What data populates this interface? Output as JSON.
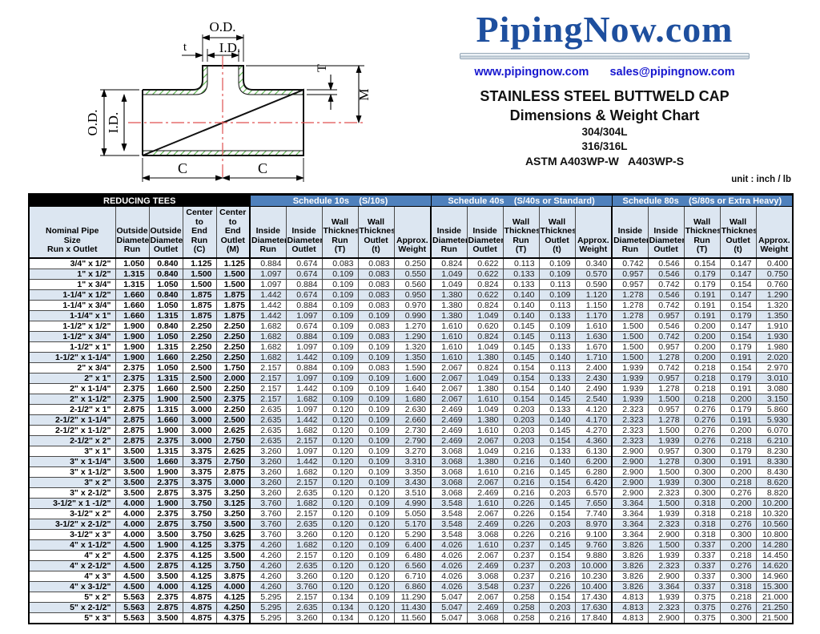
{
  "header": {
    "logo": "PipingNow.com",
    "website": "www.pipingnow.com",
    "email": "sales@pipingnow.com",
    "title1": "STAINLESS STEEL BUTTWELD CAP",
    "title2": "Dimensions & Weight Chart",
    "grade1": "304/304L",
    "grade2": "316/316L",
    "astm": "ASTM A403WP-W   A403WP-S",
    "unit_note": "unit : inch / lb"
  },
  "colors": {
    "logo_blue": "#1e4f9e",
    "link_blue": "#1717cf",
    "schedule_band_blue": "#4f81bd",
    "band_black": "#000000",
    "row_alt_blue": "#dce6f1",
    "hatch_green": "#5cb450",
    "centerline_red": "#e05252"
  },
  "diagram": {
    "labels": {
      "od_top": "O.D.",
      "id_top": "I.D.",
      "t_small": "t",
      "T_right": "T",
      "M_right": "M",
      "od_left": "O.D.",
      "id_left": "I.D.",
      "c_left": "C",
      "c_right": "C"
    }
  },
  "table": {
    "group_headers": [
      {
        "label": "REDUCING TEES",
        "span": 5,
        "style": "black"
      },
      {
        "label": "Schedule 10s    (S/10s)",
        "span": 5,
        "style": "blue"
      },
      {
        "label": "Schedule 40s    (S/40s or Standard)",
        "span": 5,
        "style": "blue"
      },
      {
        "label": "Schedule 80s    (S/80s or Extra Heavy)",
        "span": 5,
        "style": "blue"
      }
    ],
    "column_headers": [
      "Nominal Pipe\nSize\nRun x Outlet",
      "Outside\nDiameter\nRun",
      "Outside\nDiameter\nOutlet",
      "Center to\nEnd Run\n(C)",
      "Center to\nEnd\nOutlet\n(M)",
      "Inside\nDiameter\nRun",
      "Inside\nDiameter\nOutlet",
      "Wall\nThickness\nRun\n(T)",
      "Wall\nThickness\nOutlet\n(t)",
      "Approx.\nWeight",
      "Inside\nDiameter\nRun",
      "Inside\nDiameter\nOutlet",
      "Wall\nThickness\nRun\n(T)",
      "Wall\nThickness\nOutlet\n(t)",
      "Approx.\nWeight",
      "Inside\nDiameter\nRun",
      "Inside\nDiameter\nOutlet",
      "Wall\nThickness\nRun\n(T)",
      "Wall\nThickness\nOutlet\n(t)",
      "Approx.\nWeight"
    ],
    "rows": [
      [
        "3/4\" x 1/2\"",
        "1.050",
        "0.840",
        "1.125",
        "1.125",
        "0.884",
        "0.674",
        "0.083",
        "0.083",
        "0.250",
        "0.824",
        "0.622",
        "0.113",
        "0.109",
        "0.340",
        "0.742",
        "0.546",
        "0.154",
        "0.147",
        "0.400"
      ],
      [
        "1\" x 1/2\"",
        "1.315",
        "0.840",
        "1.500",
        "1.500",
        "1.097",
        "0.674",
        "0.109",
        "0.083",
        "0.550",
        "1.049",
        "0.622",
        "0.133",
        "0.109",
        "0.570",
        "0.957",
        "0.546",
        "0.179",
        "0.147",
        "0.750"
      ],
      [
        "1\" x 3/4\"",
        "1.315",
        "1.050",
        "1.500",
        "1.500",
        "1.097",
        "0.884",
        "0.109",
        "0.083",
        "0.560",
        "1.049",
        "0.824",
        "0.133",
        "0.113",
        "0.590",
        "0.957",
        "0.742",
        "0.179",
        "0.154",
        "0.760"
      ],
      [
        "1-1/4\" x 1/2\"",
        "1.660",
        "0.840",
        "1.875",
        "1.875",
        "1.442",
        "0.674",
        "0.109",
        "0.083",
        "0.950",
        "1.380",
        "0.622",
        "0.140",
        "0.109",
        "1.120",
        "1.278",
        "0.546",
        "0.191",
        "0.147",
        "1.290"
      ],
      [
        "1-1/4\" x 3/4\"",
        "1.660",
        "1.050",
        "1.875",
        "1.875",
        "1.442",
        "0.884",
        "0.109",
        "0.083",
        "0.970",
        "1.380",
        "0.824",
        "0.140",
        "0.113",
        "1.150",
        "1.278",
        "0.742",
        "0.191",
        "0.154",
        "1.320"
      ],
      [
        "1-1/4\" x 1\"",
        "1.660",
        "1.315",
        "1.875",
        "1.875",
        "1.442",
        "1.097",
        "0.109",
        "0.109",
        "0.990",
        "1.380",
        "1.049",
        "0.140",
        "0.133",
        "1.170",
        "1.278",
        "0.957",
        "0.191",
        "0.179",
        "1.350"
      ],
      [
        "1-1/2\" x 1/2\"",
        "1.900",
        "0.840",
        "2.250",
        "2.250",
        "1.682",
        "0.674",
        "0.109",
        "0.083",
        "1.270",
        "1.610",
        "0.620",
        "0.145",
        "0.109",
        "1.610",
        "1.500",
        "0.546",
        "0.200",
        "0.147",
        "1.910"
      ],
      [
        "1-1/2\" x 3/4\"",
        "1.900",
        "1.050",
        "2.250",
        "2.250",
        "1.682",
        "0.884",
        "0.109",
        "0.083",
        "1.290",
        "1.610",
        "0.824",
        "0.145",
        "0.113",
        "1.630",
        "1.500",
        "0.742",
        "0.200",
        "0.154",
        "1.930"
      ],
      [
        "1-1/2\" x 1\"",
        "1.900",
        "1.315",
        "2.250",
        "2.250",
        "1.682",
        "1.097",
        "0.109",
        "0.109",
        "1.320",
        "1.610",
        "1.049",
        "0.145",
        "0.133",
        "1.670",
        "1.500",
        "0.957",
        "0.200",
        "0.179",
        "1.980"
      ],
      [
        "1-1/2\" x 1-1/4\"",
        "1.900",
        "1.660",
        "2.250",
        "2.250",
        "1.682",
        "1.442",
        "0.109",
        "0.109",
        "1.350",
        "1.610",
        "1.380",
        "0.145",
        "0.140",
        "1.710",
        "1.500",
        "1.278",
        "0.200",
        "0.191",
        "2.020"
      ],
      [
        "2\" x 3/4\"",
        "2.375",
        "1.050",
        "2.500",
        "1.750",
        "2.157",
        "0.884",
        "0.109",
        "0.083",
        "1.590",
        "2.067",
        "0.824",
        "0.154",
        "0.113",
        "2.400",
        "1.939",
        "0.742",
        "0.218",
        "0.154",
        "2.970"
      ],
      [
        "2\" x 1\"",
        "2.375",
        "1.315",
        "2.500",
        "2.000",
        "2.157",
        "1.097",
        "0.109",
        "0.109",
        "1.600",
        "2.067",
        "1.049",
        "0.154",
        "0.133",
        "2.430",
        "1.939",
        "0.957",
        "0.218",
        "0.179",
        "3.010"
      ],
      [
        "2\" x 1-1/4\"",
        "2.375",
        "1.660",
        "2.500",
        "2.250",
        "2.157",
        "1.442",
        "0.109",
        "0.109",
        "1.640",
        "2.067",
        "1.380",
        "0.154",
        "0.140",
        "2.490",
        "1.939",
        "1.278",
        "0.218",
        "0.191",
        "3.080"
      ],
      [
        "2\" x 1-1/2\"",
        "2.375",
        "1.900",
        "2.500",
        "2.375",
        "2.157",
        "1.682",
        "0.109",
        "0.109",
        "1.680",
        "2.067",
        "1.610",
        "0.154",
        "0.145",
        "2.540",
        "1.939",
        "1.500",
        "0.218",
        "0.200",
        "3.150"
      ],
      [
        "2-1/2\" x 1\"",
        "2.875",
        "1.315",
        "3.000",
        "2.250",
        "2.635",
        "1.097",
        "0.120",
        "0.109",
        "2.630",
        "2.469",
        "1.049",
        "0.203",
        "0.133",
        "4.120",
        "2.323",
        "0.957",
        "0.276",
        "0.179",
        "5.860"
      ],
      [
        "2-1/2\" x 1-1/4\"",
        "2.875",
        "1.660",
        "3.000",
        "2.500",
        "2.635",
        "1.442",
        "0.120",
        "0.109",
        "2.660",
        "2.469",
        "1.380",
        "0.203",
        "0.140",
        "4.170",
        "2.323",
        "1.278",
        "0.276",
        "0.191",
        "5.930"
      ],
      [
        "2-1/2\" x 1-1/2\"",
        "2.875",
        "1.900",
        "3.000",
        "2.625",
        "2.635",
        "1.682",
        "0.120",
        "0.109",
        "2.730",
        "2.469",
        "1.610",
        "0.203",
        "0.145",
        "4.270",
        "2.323",
        "1.500",
        "0.276",
        "0.200",
        "6.070"
      ],
      [
        "2-1/2\" x 2\"",
        "2.875",
        "2.375",
        "3.000",
        "2.750",
        "2.635",
        "2.157",
        "0.120",
        "0.109",
        "2.790",
        "2.469",
        "2.067",
        "0.203",
        "0.154",
        "4.360",
        "2.323",
        "1.939",
        "0.276",
        "0.218",
        "6.210"
      ],
      [
        "3\" x 1\"",
        "3.500",
        "1.315",
        "3.375",
        "2.625",
        "3.260",
        "1.097",
        "0.120",
        "0.109",
        "3.270",
        "3.068",
        "1.049",
        "0.216",
        "0.133",
        "6.130",
        "2.900",
        "0.957",
        "0.300",
        "0.179",
        "8.230"
      ],
      [
        "3\" x 1-1/4\"",
        "3.500",
        "1.660",
        "3.375",
        "2.750",
        "3.260",
        "1.442",
        "0.120",
        "0.109",
        "3.310",
        "3.068",
        "1.380",
        "0.216",
        "0.140",
        "6.200",
        "2.900",
        "1.278",
        "0.300",
        "0.191",
        "8.330"
      ],
      [
        "3\" x 1-1/2\"",
        "3.500",
        "1.900",
        "3.375",
        "2.875",
        "3.260",
        "1.682",
        "0.120",
        "0.109",
        "3.350",
        "3.068",
        "1.610",
        "0.216",
        "0.145",
        "6.280",
        "2.900",
        "1.500",
        "0.300",
        "0.200",
        "8.430"
      ],
      [
        "3\" x 2\"",
        "3.500",
        "2.375",
        "3.375",
        "3.000",
        "3.260",
        "2.157",
        "0.120",
        "0.109",
        "3.430",
        "3.068",
        "2.067",
        "0.216",
        "0.154",
        "6.420",
        "2.900",
        "1.939",
        "0.300",
        "0.218",
        "8.620"
      ],
      [
        "3\" x 2-1/2\"",
        "3.500",
        "2.875",
        "3.375",
        "3.250",
        "3.260",
        "2.635",
        "0.120",
        "0.120",
        "3.510",
        "3.068",
        "2.469",
        "0.216",
        "0.203",
        "6.570",
        "2.900",
        "2.323",
        "0.300",
        "0.276",
        "8.820"
      ],
      [
        "3-1/2\" x 1 -1/2\"",
        "4.000",
        "1.900",
        "3.750",
        "3.125",
        "3.760",
        "1.682",
        "0.120",
        "0.109",
        "4.990",
        "3.548",
        "1.610",
        "0.226",
        "0.145",
        "7.650",
        "3.364",
        "1.500",
        "0.318",
        "0.200",
        "10.200"
      ],
      [
        "3-1/2\" x 2\"",
        "4.000",
        "2.375",
        "3.750",
        "3.250",
        "3.760",
        "2.157",
        "0.120",
        "0.109",
        "5.050",
        "3.548",
        "2.067",
        "0.226",
        "0.154",
        "7.740",
        "3.364",
        "1.939",
        "0.318",
        "0.218",
        "10.320"
      ],
      [
        "3-1/2\" x 2-1/2\"",
        "4.000",
        "2.875",
        "3.750",
        "3.500",
        "3.760",
        "2.635",
        "0.120",
        "0.120",
        "5.170",
        "3.548",
        "2.469",
        "0.226",
        "0.203",
        "8.970",
        "3.364",
        "2.323",
        "0.318",
        "0.276",
        "10.560"
      ],
      [
        "3-1/2\" x 3\"",
        "4.000",
        "3.500",
        "3.750",
        "3.625",
        "3.760",
        "3.260",
        "0.120",
        "0.120",
        "5.290",
        "3.548",
        "3.068",
        "0.226",
        "0.216",
        "9.100",
        "3.364",
        "2.900",
        "0.318",
        "0.300",
        "10.800"
      ],
      [
        "4\" x 1-1/2\"",
        "4.500",
        "1.900",
        "4.125",
        "3.375",
        "4.260",
        "1.682",
        "0.120",
        "0.109",
        "6.400",
        "4.026",
        "1.610",
        "0.237",
        "0.145",
        "9.760",
        "3.826",
        "1.500",
        "0.337",
        "0.200",
        "14.280"
      ],
      [
        "4\" x 2\"",
        "4.500",
        "2.375",
        "4.125",
        "3.500",
        "4.260",
        "2.157",
        "0.120",
        "0.109",
        "6.480",
        "4.026",
        "2.067",
        "0.237",
        "0.154",
        "9.880",
        "3.826",
        "1.939",
        "0.337",
        "0.218",
        "14.450"
      ],
      [
        "4\" x 2-1/2\"",
        "4.500",
        "2.875",
        "4.125",
        "3.750",
        "4.260",
        "2.635",
        "0.120",
        "0.120",
        "6.560",
        "4.026",
        "2.469",
        "0.237",
        "0.203",
        "10.000",
        "3.826",
        "2.323",
        "0.337",
        "0.276",
        "14.620"
      ],
      [
        "4\" x 3\"",
        "4.500",
        "3.500",
        "4.125",
        "3.875",
        "4.260",
        "3.260",
        "0.120",
        "0.120",
        "6.710",
        "4.026",
        "3.068",
        "0.237",
        "0.216",
        "10.230",
        "3.826",
        "2.900",
        "0.337",
        "0.300",
        "14.960"
      ],
      [
        "4\" x 3-1/2\"",
        "4.500",
        "4.000",
        "4.125",
        "4.000",
        "4.260",
        "3.760",
        "0.120",
        "0.120",
        "6.860",
        "4.026",
        "3.548",
        "0.237",
        "0.226",
        "10.400",
        "3.826",
        "3.364",
        "0.337",
        "0.318",
        "15.300"
      ],
      [
        "5\" x 2\"",
        "5.563",
        "2.375",
        "4.875",
        "4.125",
        "5.295",
        "2.157",
        "0.134",
        "0.109",
        "11.290",
        "5.047",
        "2.067",
        "0.258",
        "0.154",
        "17.430",
        "4.813",
        "1.939",
        "0.375",
        "0.218",
        "21.000"
      ],
      [
        "5\" x 2-1/2\"",
        "5.563",
        "2.875",
        "4.875",
        "4.250",
        "5.295",
        "2.635",
        "0.134",
        "0.120",
        "11.430",
        "5.047",
        "2.469",
        "0.258",
        "0.203",
        "17.630",
        "4.813",
        "2.323",
        "0.375",
        "0.276",
        "21.250"
      ],
      [
        "5\" x 3\"",
        "5.563",
        "3.500",
        "4.875",
        "4.375",
        "5.295",
        "3.260",
        "0.134",
        "0.120",
        "11.560",
        "5.047",
        "3.068",
        "0.258",
        "0.216",
        "17.840",
        "4.813",
        "2.900",
        "0.375",
        "0.300",
        "21.500"
      ]
    ]
  }
}
